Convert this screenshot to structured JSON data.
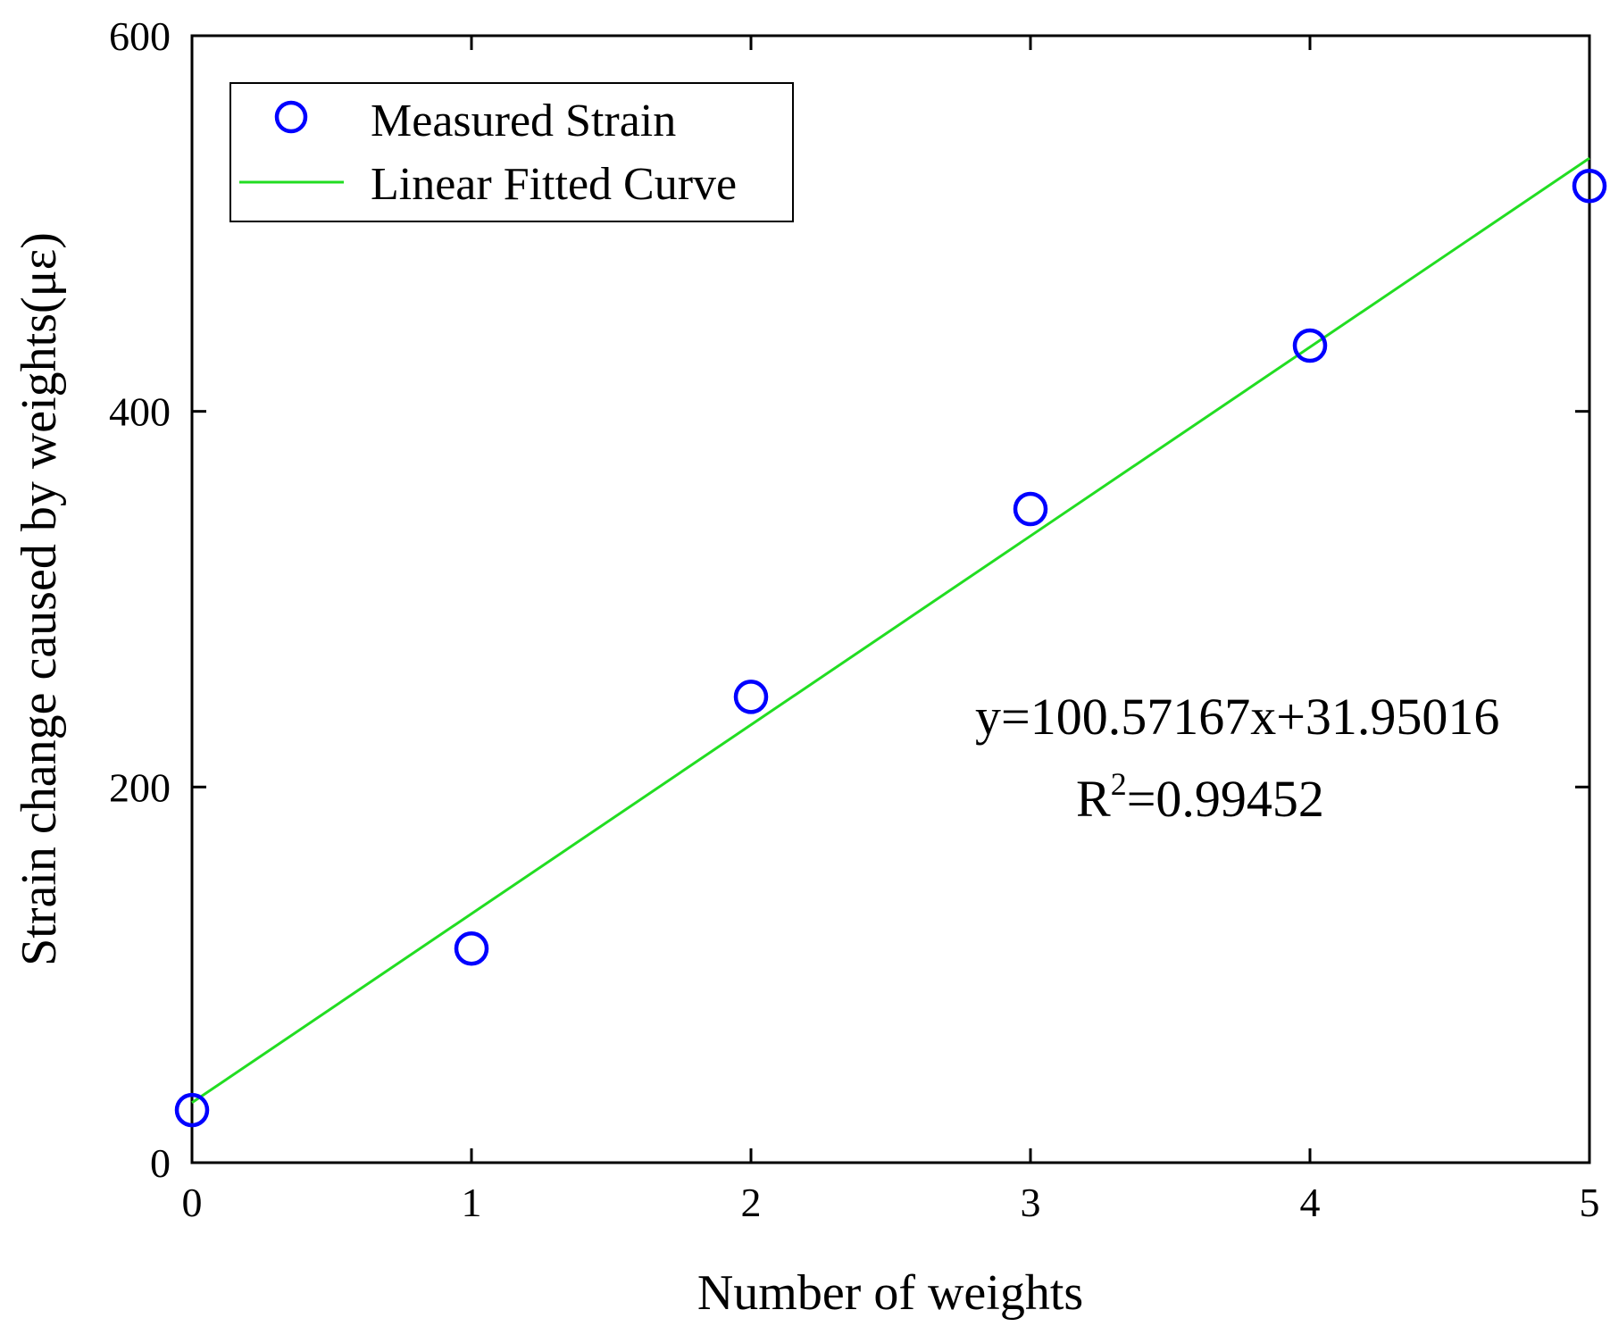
{
  "chart_data": {
    "type": "scatter",
    "title": "",
    "xlabel": "Number of weights",
    "ylabel": "Strain change caused by weights(με)",
    "xlim": [
      0,
      5
    ],
    "ylim": [
      0,
      600
    ],
    "x_ticks": [
      0,
      1,
      2,
      3,
      4,
      5
    ],
    "y_ticks": [
      0,
      200,
      400,
      600
    ],
    "x_tick_labels": [
      "0",
      "1",
      "2",
      "3",
      "4",
      "5"
    ],
    "y_tick_labels": [
      "0",
      "200",
      "400",
      "600"
    ],
    "grid": false,
    "legend_position": "top-left",
    "series": [
      {
        "name": "Measured Strain",
        "kind": "scatter",
        "marker": "open-circle",
        "color": "#0000ff",
        "x": [
          0,
          1,
          2,
          3,
          4,
          5
        ],
        "y": [
          28,
          114,
          248,
          348,
          435,
          520
        ]
      },
      {
        "name": "Linear Fitted Curve",
        "kind": "line",
        "color": "#22dd22",
        "slope": 100.57167,
        "intercept": 31.95016,
        "x_range": [
          0,
          5
        ]
      }
    ],
    "annotations": {
      "equation": "y=100.57167x+31.95016",
      "r2_prefix": "R",
      "r2_superscript": "2",
      "r2_value": "=0.99452"
    }
  }
}
